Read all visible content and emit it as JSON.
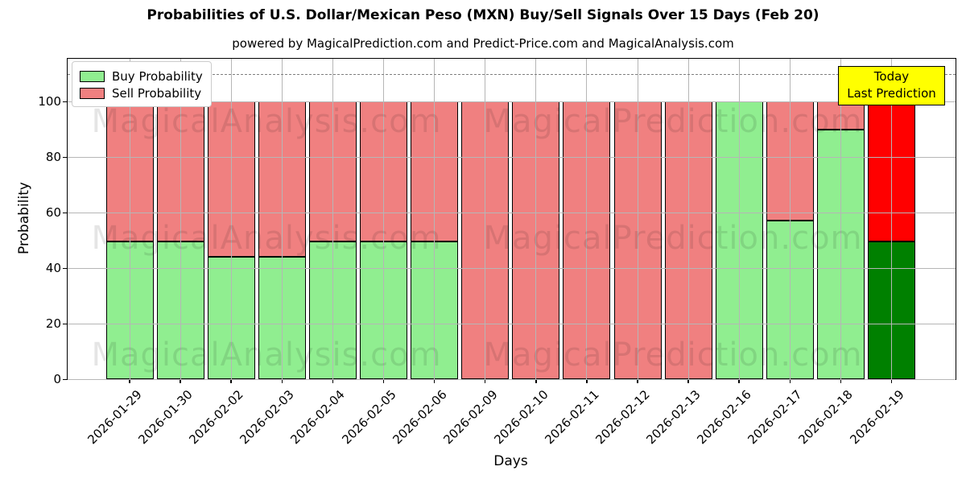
{
  "chart_data": {
    "type": "bar",
    "variant": "stacked",
    "title": "Probabilities of U.S. Dollar/Mexican Peso (MXN) Buy/Sell Signals Over 15 Days (Feb 20)",
    "subtitle": "powered by MagicalPrediction.com and Predict-Price.com and MagicalAnalysis.com",
    "xlabel": "Days",
    "ylabel": "Probability",
    "ylim": [
      0,
      115.4
    ],
    "yticks": [
      0,
      20,
      40,
      60,
      80,
      100
    ],
    "dashed_line_y": 110,
    "grid": true,
    "legend_position": "top-left",
    "categories": [
      "2026-01-29",
      "2026-01-30",
      "2026-02-02",
      "2026-02-03",
      "2026-02-04",
      "2026-02-05",
      "2026-02-06",
      "2026-02-09",
      "2026-02-10",
      "2026-02-11",
      "2026-02-12",
      "2026-02-13",
      "2026-02-16",
      "2026-02-17",
      "2026-02-18",
      "2026-02-19"
    ],
    "series": [
      {
        "name": "Buy Probability",
        "color": "#90EE90",
        "today_color": "#008000",
        "values": [
          49.5,
          49.5,
          44,
          44,
          49.5,
          49.5,
          49.5,
          0,
          0,
          0,
          0,
          0,
          100,
          57,
          90,
          49.5
        ]
      },
      {
        "name": "Sell Probability",
        "color": "#F08080",
        "today_color": "#FF0000",
        "values": [
          50.5,
          50.5,
          56,
          56,
          50.5,
          50.5,
          50.5,
          100,
          100,
          100,
          100,
          100,
          0,
          43,
          10,
          50.5
        ]
      }
    ],
    "today_index": 15,
    "annotation": {
      "text_lines": [
        "Today",
        "Last Prediction"
      ],
      "bg_color": "#FFFF00",
      "border_color": "#000000"
    },
    "watermarks": {
      "left_text": "MagicalAnalysis.com",
      "right_text": "MagicalPrediction.com",
      "row_centers_y": [
        150,
        295,
        440
      ]
    }
  }
}
